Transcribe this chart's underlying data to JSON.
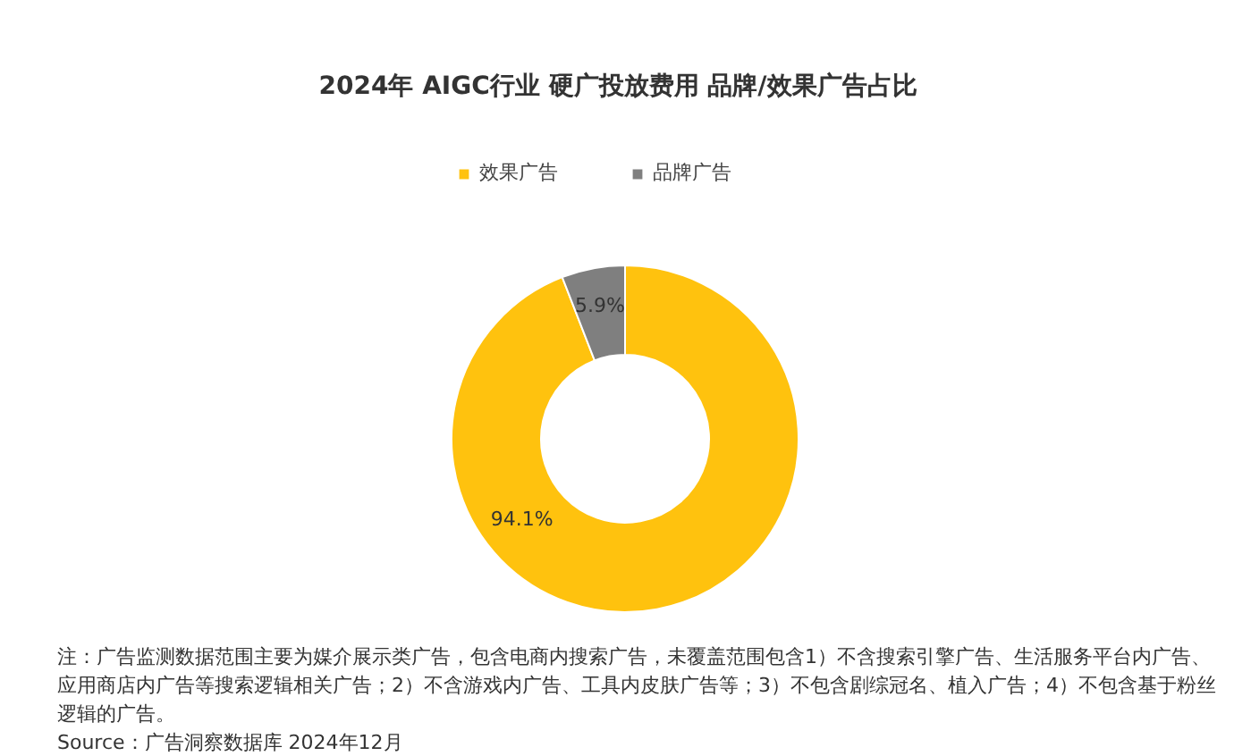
{
  "chart_data": {
    "type": "donut",
    "title": "2024年 AIGC行业 硬广投放费用 品牌/效果广告占比",
    "categories": [
      "效果广告",
      "品牌广告"
    ],
    "values": [
      94.1,
      5.9
    ],
    "colors": [
      "#ffc20e",
      "#7f7f7f"
    ],
    "value_labels": [
      "94.1%",
      "5.9%"
    ],
    "legend": "top",
    "annotations": [
      "注：广告监测数据范围主要为媒介展示类广告，包含电商内搜索广告，未覆盖范围包含1）不含搜索引擎广告、生活服务平台内广告、应用商店内广告等搜索逻辑相关广告；2）不含游戏内广告、工具内皮肤广告等；3）不包含剧综冠名、植入广告；4）不包含基于粉丝逻辑的广告。",
      "Source：广告洞察数据库 2024年12月"
    ]
  }
}
